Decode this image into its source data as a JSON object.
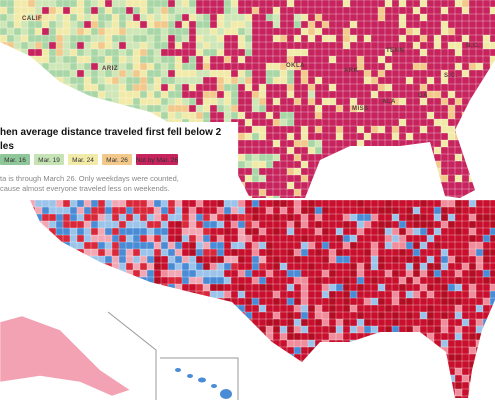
{
  "map_labels": [
    {
      "text": "CALIF",
      "x": 22,
      "y": 20
    },
    {
      "text": "ARIZ",
      "x": 102,
      "y": 70
    },
    {
      "text": "OKLA",
      "x": 286,
      "y": 67
    },
    {
      "text": "ARK",
      "x": 344,
      "y": 72
    },
    {
      "text": "TENN",
      "x": 386,
      "y": 52
    },
    {
      "text": "MISS",
      "x": 352,
      "y": 110
    },
    {
      "text": "ALA",
      "x": 382,
      "y": 103
    },
    {
      "text": "GA",
      "x": 418,
      "y": 97
    },
    {
      "text": "S.C.",
      "x": 444,
      "y": 77
    },
    {
      "text": "N.C.",
      "x": 466,
      "y": 47
    }
  ],
  "caption": {
    "title_lines": [
      "hen average distance traveled first fell below 2",
      "les"
    ],
    "legend": [
      "Mar. 16",
      "Mar. 19",
      "Mar. 24",
      "Mar. 26",
      "Not by Mar. 26"
    ],
    "notes": [
      "ta is through March 26. Only weekdays were counted,",
      "cause almost everyone traveled less on weekends."
    ]
  }
}
